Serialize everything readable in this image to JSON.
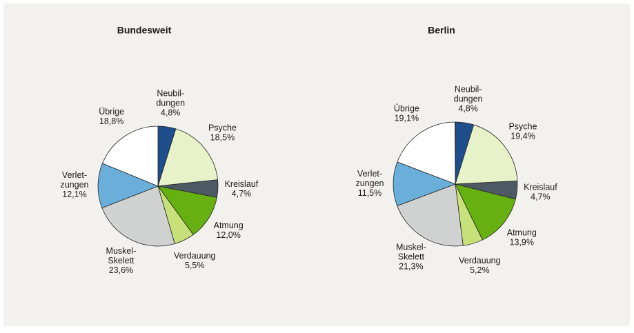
{
  "chart_data": [
    {
      "type": "pie",
      "title": "Bundesweit",
      "categories": [
        [
          "Neubil-",
          "dungen"
        ],
        [
          "Psyche"
        ],
        [
          "Kreislauf"
        ],
        [
          "Atmung"
        ],
        [
          "Verdauung"
        ],
        [
          "Muskel-",
          "Skelett"
        ],
        [
          "Verlet-",
          "zungen"
        ],
        [
          "Übrige"
        ]
      ],
      "values": [
        4.8,
        18.5,
        4.7,
        12.0,
        5.5,
        23.6,
        12.1,
        18.8
      ],
      "value_labels": [
        "4,8%",
        "18,5%",
        "4,7%",
        "12,0%",
        "5,5%",
        "23,6%",
        "12,1%",
        "18,8%"
      ],
      "colors": [
        "#1f4e8c",
        "#e8f2c8",
        "#4d5a63",
        "#66b012",
        "#c8e07a",
        "#d0d2d2",
        "#6aafd9",
        "#ffffff"
      ]
    },
    {
      "type": "pie",
      "title": "Berlin",
      "categories": [
        [
          "Neubil-",
          "dungen"
        ],
        [
          "Psyche"
        ],
        [
          "Kreislauf"
        ],
        [
          "Atmung"
        ],
        [
          "Verdauung"
        ],
        [
          "Muskel-",
          "Skelett"
        ],
        [
          "Verlet-",
          "zungen"
        ],
        [
          "Übrige"
        ]
      ],
      "values": [
        4.8,
        19.4,
        4.7,
        13.9,
        5.2,
        21.3,
        11.5,
        19.1
      ],
      "value_labels": [
        "4,8%",
        "19,4%",
        "4,7%",
        "13,9%",
        "5,2%",
        "21,3%",
        "11,5%",
        "19,1%"
      ],
      "colors": [
        "#1f4e8c",
        "#e8f2c8",
        "#4d5a63",
        "#66b012",
        "#c8e07a",
        "#d0d2d2",
        "#6aafd9",
        "#ffffff"
      ]
    }
  ]
}
